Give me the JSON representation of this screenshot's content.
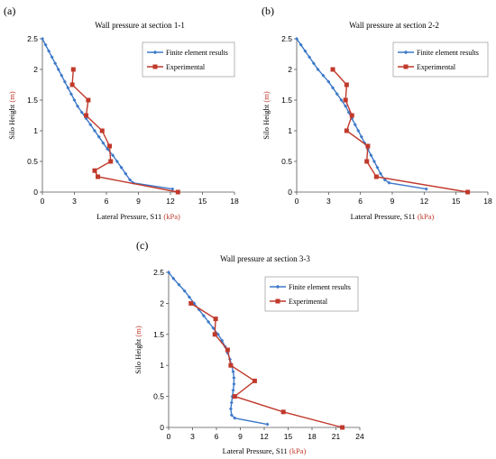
{
  "chart_data": [
    {
      "panel": "(a)",
      "type": "line",
      "title": "Wall pressure  at section  1-1",
      "xlabel": "Lateral Pressure,  S11",
      "xunit": "(kPa)",
      "ylabel": "Silo  Height",
      "yunit": "(m)",
      "xlim": [
        0,
        18
      ],
      "ylim": [
        0,
        2.5
      ],
      "xticks": [
        0,
        3,
        6,
        9,
        12,
        15,
        18
      ],
      "yticks": [
        0,
        0.5,
        1,
        1.5,
        2,
        2.5
      ],
      "legend": "top-right",
      "series": [
        {
          "name": "Finite element results",
          "color": "#3c78c8",
          "marker": "diamond",
          "points": [
            [
              0,
              2.5
            ],
            [
              0.3,
              2.4
            ],
            [
              0.6,
              2.3
            ],
            [
              0.9,
              2.2
            ],
            [
              1.2,
              2.1
            ],
            [
              1.5,
              2.0
            ],
            [
              1.8,
              1.9
            ],
            [
              2.1,
              1.8
            ],
            [
              2.4,
              1.7
            ],
            [
              2.7,
              1.6
            ],
            [
              3.0,
              1.5
            ],
            [
              3.3,
              1.4
            ],
            [
              3.7,
              1.3
            ],
            [
              4.1,
              1.2
            ],
            [
              4.5,
              1.1
            ],
            [
              4.9,
              1.0
            ],
            [
              5.3,
              0.9
            ],
            [
              5.7,
              0.8
            ],
            [
              6.1,
              0.7
            ],
            [
              6.6,
              0.6
            ],
            [
              7.0,
              0.5
            ],
            [
              7.4,
              0.4
            ],
            [
              7.8,
              0.3
            ],
            [
              8.2,
              0.2
            ],
            [
              8.5,
              0.15
            ],
            [
              12.2,
              0.05
            ]
          ]
        },
        {
          "name": "Experimental",
          "color": "#c0392b",
          "marker": "square",
          "points": [
            [
              2.9,
              2.0
            ],
            [
              2.8,
              1.75
            ],
            [
              4.3,
              1.5
            ],
            [
              4.1,
              1.25
            ],
            [
              5.6,
              1.0
            ],
            [
              6.3,
              0.75
            ],
            [
              6.4,
              0.5
            ],
            [
              4.9,
              0.35
            ],
            [
              5.2,
              0.25
            ],
            [
              12.7,
              0.0
            ]
          ]
        }
      ]
    },
    {
      "panel": "(b)",
      "type": "line",
      "title": "Wall pressure  at section  2-2",
      "xlabel": "Lateral Pressure,  S11",
      "xunit": "(kPa)",
      "ylabel": "Silo  Height",
      "yunit": "(m)",
      "xlim": [
        0,
        18
      ],
      "ylim": [
        0,
        2.5
      ],
      "xticks": [
        0,
        3,
        6,
        9,
        12,
        15,
        18
      ],
      "yticks": [
        0,
        0.5,
        1,
        1.5,
        2,
        2.5
      ],
      "legend": "top-right",
      "series": [
        {
          "name": "Finite element results",
          "color": "#3c78c8",
          "marker": "diamond",
          "points": [
            [
              0,
              2.5
            ],
            [
              0.4,
              2.4
            ],
            [
              0.8,
              2.3
            ],
            [
              1.2,
              2.2
            ],
            [
              1.6,
              2.1
            ],
            [
              2.0,
              2.0
            ],
            [
              2.5,
              1.9
            ],
            [
              3.0,
              1.8
            ],
            [
              3.4,
              1.7
            ],
            [
              3.8,
              1.6
            ],
            [
              4.2,
              1.5
            ],
            [
              4.6,
              1.4
            ],
            [
              4.9,
              1.3
            ],
            [
              5.2,
              1.2
            ],
            [
              5.5,
              1.1
            ],
            [
              5.8,
              1.0
            ],
            [
              6.1,
              0.9
            ],
            [
              6.4,
              0.8
            ],
            [
              6.7,
              0.7
            ],
            [
              7.0,
              0.6
            ],
            [
              7.3,
              0.5
            ],
            [
              7.6,
              0.4
            ],
            [
              7.9,
              0.3
            ],
            [
              8.3,
              0.2
            ],
            [
              8.7,
              0.15
            ],
            [
              12.2,
              0.05
            ]
          ]
        },
        {
          "name": "Experimental",
          "color": "#c0392b",
          "marker": "square",
          "points": [
            [
              3.4,
              2.0
            ],
            [
              4.7,
              1.75
            ],
            [
              4.6,
              1.5
            ],
            [
              5.2,
              1.25
            ],
            [
              4.7,
              1.0
            ],
            [
              6.7,
              0.75
            ],
            [
              6.6,
              0.5
            ],
            [
              7.5,
              0.25
            ],
            [
              16.1,
              0.0
            ]
          ]
        }
      ]
    },
    {
      "panel": "(c)",
      "type": "line",
      "title": "Wall pressure  at section  3-3",
      "xlabel": "Lateral Pressure,  S11",
      "xunit": "(kPa)",
      "ylabel": "Silo  Height",
      "yunit": "(m)",
      "xlim": [
        0,
        24
      ],
      "ylim": [
        0,
        2.5
      ],
      "xticks": [
        0,
        3,
        6,
        9,
        12,
        15,
        18,
        21,
        24
      ],
      "yticks": [
        0,
        0.5,
        1,
        1.5,
        2,
        2.5
      ],
      "legend": "top-right",
      "series": [
        {
          "name": "Finite element results",
          "color": "#3c78c8",
          "marker": "diamond",
          "points": [
            [
              0,
              2.5
            ],
            [
              0.6,
              2.4
            ],
            [
              1.3,
              2.3
            ],
            [
              2.0,
              2.2
            ],
            [
              2.6,
              2.1
            ],
            [
              3.2,
              2.0
            ],
            [
              3.8,
              1.9
            ],
            [
              4.4,
              1.8
            ],
            [
              5.0,
              1.7
            ],
            [
              5.6,
              1.6
            ],
            [
              6.2,
              1.5
            ],
            [
              6.7,
              1.4
            ],
            [
              7.1,
              1.3
            ],
            [
              7.4,
              1.2
            ],
            [
              7.7,
              1.1
            ],
            [
              7.9,
              1.0
            ],
            [
              8.1,
              0.9
            ],
            [
              8.2,
              0.8
            ],
            [
              8.2,
              0.7
            ],
            [
              8.1,
              0.6
            ],
            [
              8.0,
              0.5
            ],
            [
              7.9,
              0.4
            ],
            [
              7.8,
              0.3
            ],
            [
              7.9,
              0.2
            ],
            [
              8.3,
              0.15
            ],
            [
              12.4,
              0.05
            ]
          ]
        },
        {
          "name": "Experimental",
          "color": "#c0392b",
          "marker": "square",
          "points": [
            [
              2.8,
              2.0
            ],
            [
              5.9,
              1.75
            ],
            [
              5.8,
              1.5
            ],
            [
              7.4,
              1.25
            ],
            [
              7.8,
              1.0
            ],
            [
              10.8,
              0.75
            ],
            [
              8.3,
              0.5
            ],
            [
              14.4,
              0.25
            ],
            [
              21.8,
              0.0
            ]
          ]
        }
      ]
    }
  ]
}
